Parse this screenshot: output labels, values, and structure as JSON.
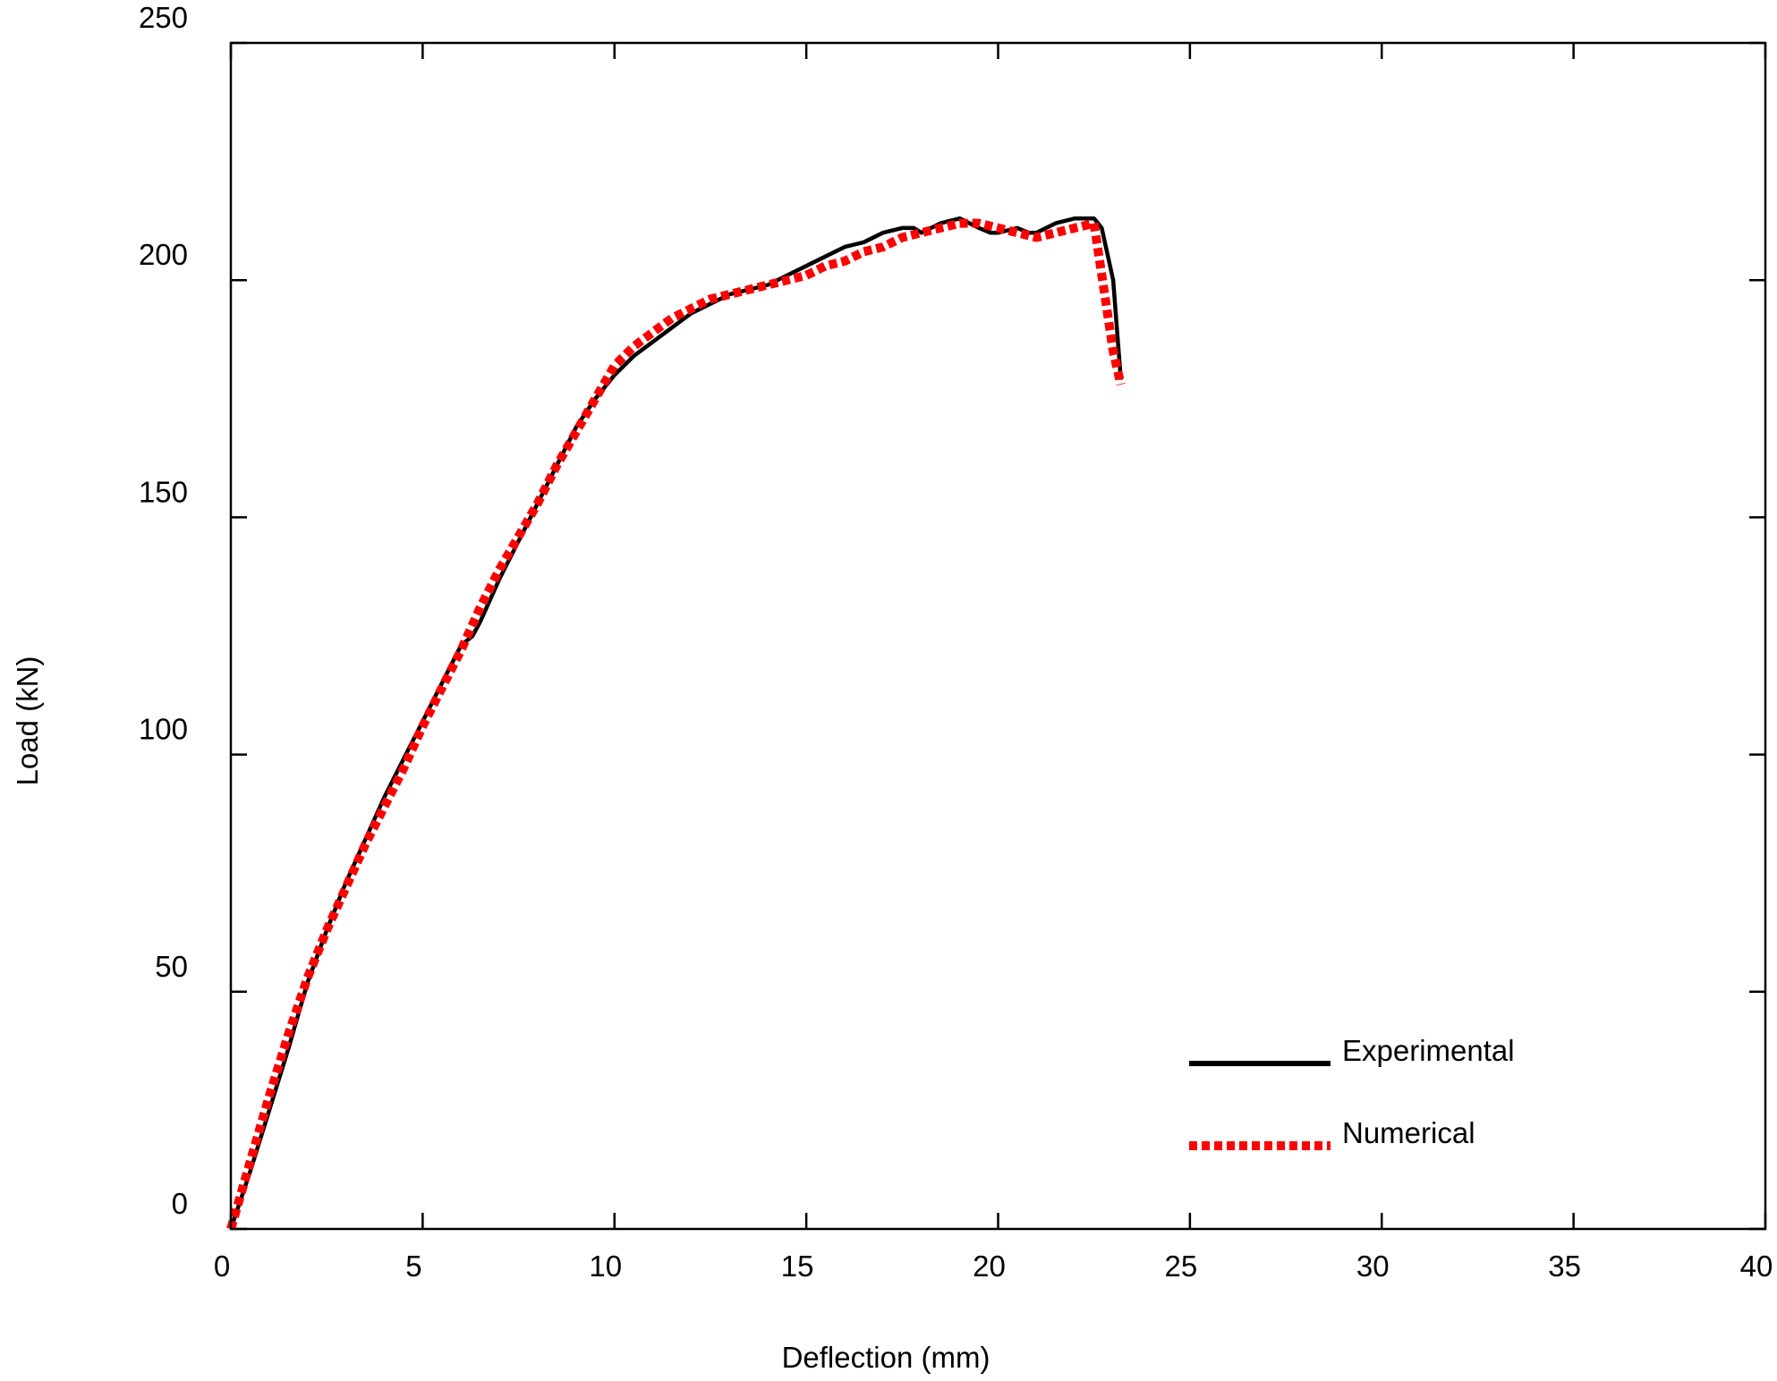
{
  "chart_data": {
    "type": "line",
    "title": "",
    "xlabel": "Deflection (mm)",
    "ylabel": "Load (kN)",
    "xlim": [
      0,
      40
    ],
    "ylim": [
      0,
      250
    ],
    "xticks": [
      "0",
      "5",
      "10",
      "15",
      "20",
      "25",
      "30",
      "35",
      "40"
    ],
    "yticks": [
      "0",
      "50",
      "100",
      "150",
      "200",
      "250"
    ],
    "grid": false,
    "legend_position": "bottom-right",
    "series": [
      {
        "name": "Experimental",
        "color": "#000000",
        "style": "solid",
        "x": [
          0,
          0.5,
          1.0,
          1.5,
          2.0,
          2.5,
          3.0,
          3.5,
          4.0,
          4.5,
          5.0,
          5.5,
          6.0,
          6.3,
          6.5,
          7.0,
          7.5,
          8.0,
          8.5,
          9.0,
          9.5,
          10.0,
          10.5,
          11.0,
          11.5,
          12.0,
          12.5,
          13.0,
          13.5,
          14.0,
          14.5,
          15.0,
          15.5,
          16.0,
          16.5,
          17.0,
          17.5,
          17.8,
          18.0,
          18.5,
          19.0,
          19.5,
          19.8,
          20.0,
          20.5,
          20.8,
          21.0,
          21.5,
          22.0,
          22.5,
          22.7,
          23.0,
          23.2
        ],
        "y": [
          0,
          12,
          25,
          38,
          52,
          63,
          73,
          82,
          91,
          99,
          107,
          115,
          123,
          125,
          128,
          137,
          145,
          153,
          161,
          169,
          175,
          180,
          184,
          187,
          190,
          193,
          195,
          197,
          198,
          199,
          201,
          203,
          205,
          207,
          208,
          210,
          211,
          211,
          210,
          212,
          213,
          211,
          210,
          210,
          211,
          210,
          210,
          212,
          213,
          213,
          211,
          200,
          179
        ]
      },
      {
        "name": "Numerical",
        "color": "#ff0000",
        "style": "dotted",
        "x": [
          0,
          0.5,
          1.0,
          1.5,
          2.0,
          2.5,
          3.0,
          3.5,
          4.0,
          4.5,
          5.0,
          5.5,
          6.0,
          6.5,
          7.0,
          7.5,
          8.0,
          8.5,
          9.0,
          9.5,
          10.0,
          10.5,
          11.0,
          11.5,
          12.0,
          12.5,
          13.0,
          13.5,
          14.0,
          14.5,
          15.0,
          15.5,
          16.0,
          16.5,
          17.0,
          17.5,
          18.0,
          18.5,
          19.0,
          19.5,
          20.0,
          20.5,
          21.0,
          21.5,
          22.0,
          22.5,
          23.0,
          23.2
        ],
        "y": [
          0,
          14,
          28,
          41,
          53,
          63,
          72,
          81,
          89,
          97,
          106,
          114,
          122,
          131,
          139,
          146,
          153,
          161,
          168,
          175,
          182,
          186,
          189,
          192,
          194,
          196,
          197,
          198,
          199,
          200,
          201,
          203,
          204,
          206,
          207,
          209,
          210,
          211,
          212,
          212,
          211,
          210,
          209,
          210,
          211,
          212,
          185,
          178
        ]
      }
    ]
  }
}
